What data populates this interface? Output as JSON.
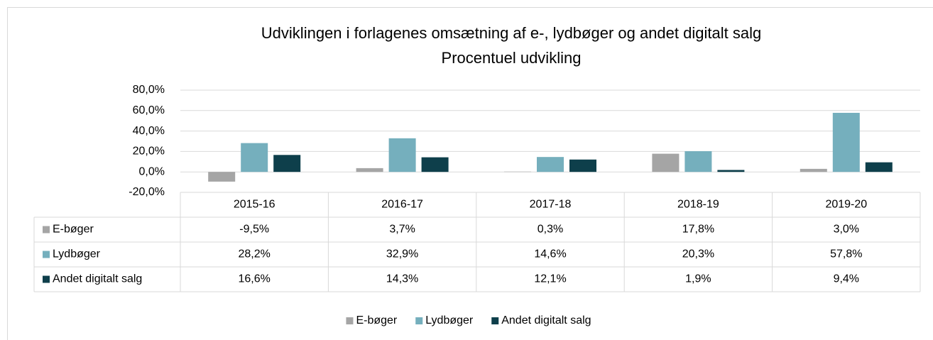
{
  "chart_data": {
    "type": "bar",
    "title": "Udviklingen i forlagenes omsætning af e-, lydbøger og andet digitalt salg",
    "subtitle": "Procentuel udvikling",
    "categories": [
      "2015-16",
      "2016-17",
      "2017-18",
      "2018-19",
      "2019-20"
    ],
    "series": [
      {
        "name": "E-bøger",
        "color": "#a5a5a5",
        "values": [
          -9.5,
          3.7,
          0.3,
          17.8,
          3.0
        ],
        "value_labels": [
          "-9,5%",
          "3,7%",
          "0,3%",
          "17,8%",
          "3,0%"
        ]
      },
      {
        "name": "Lydbøger",
        "color": "#75afbd",
        "values": [
          28.2,
          32.9,
          14.6,
          20.3,
          57.8
        ],
        "value_labels": [
          "28,2%",
          "32,9%",
          "14,6%",
          "20,3%",
          "57,8%"
        ]
      },
      {
        "name": "Andet digitalt salg",
        "color": "#0e3f4b",
        "values": [
          16.6,
          14.3,
          12.1,
          1.9,
          9.4
        ],
        "value_labels": [
          "16,6%",
          "14,3%",
          "12,1%",
          "1,9%",
          "9,4%"
        ]
      }
    ],
    "ylim": [
      -20,
      80
    ],
    "yticks": [
      {
        "value": -20,
        "label": "-20,0%"
      },
      {
        "value": 0,
        "label": "0,0%"
      },
      {
        "value": 20,
        "label": "20,0%"
      },
      {
        "value": 40,
        "label": "40,0%"
      },
      {
        "value": 60,
        "label": "60,0%"
      },
      {
        "value": 80,
        "label": "80,0%"
      }
    ],
    "grid": true,
    "legend": "bottom"
  }
}
